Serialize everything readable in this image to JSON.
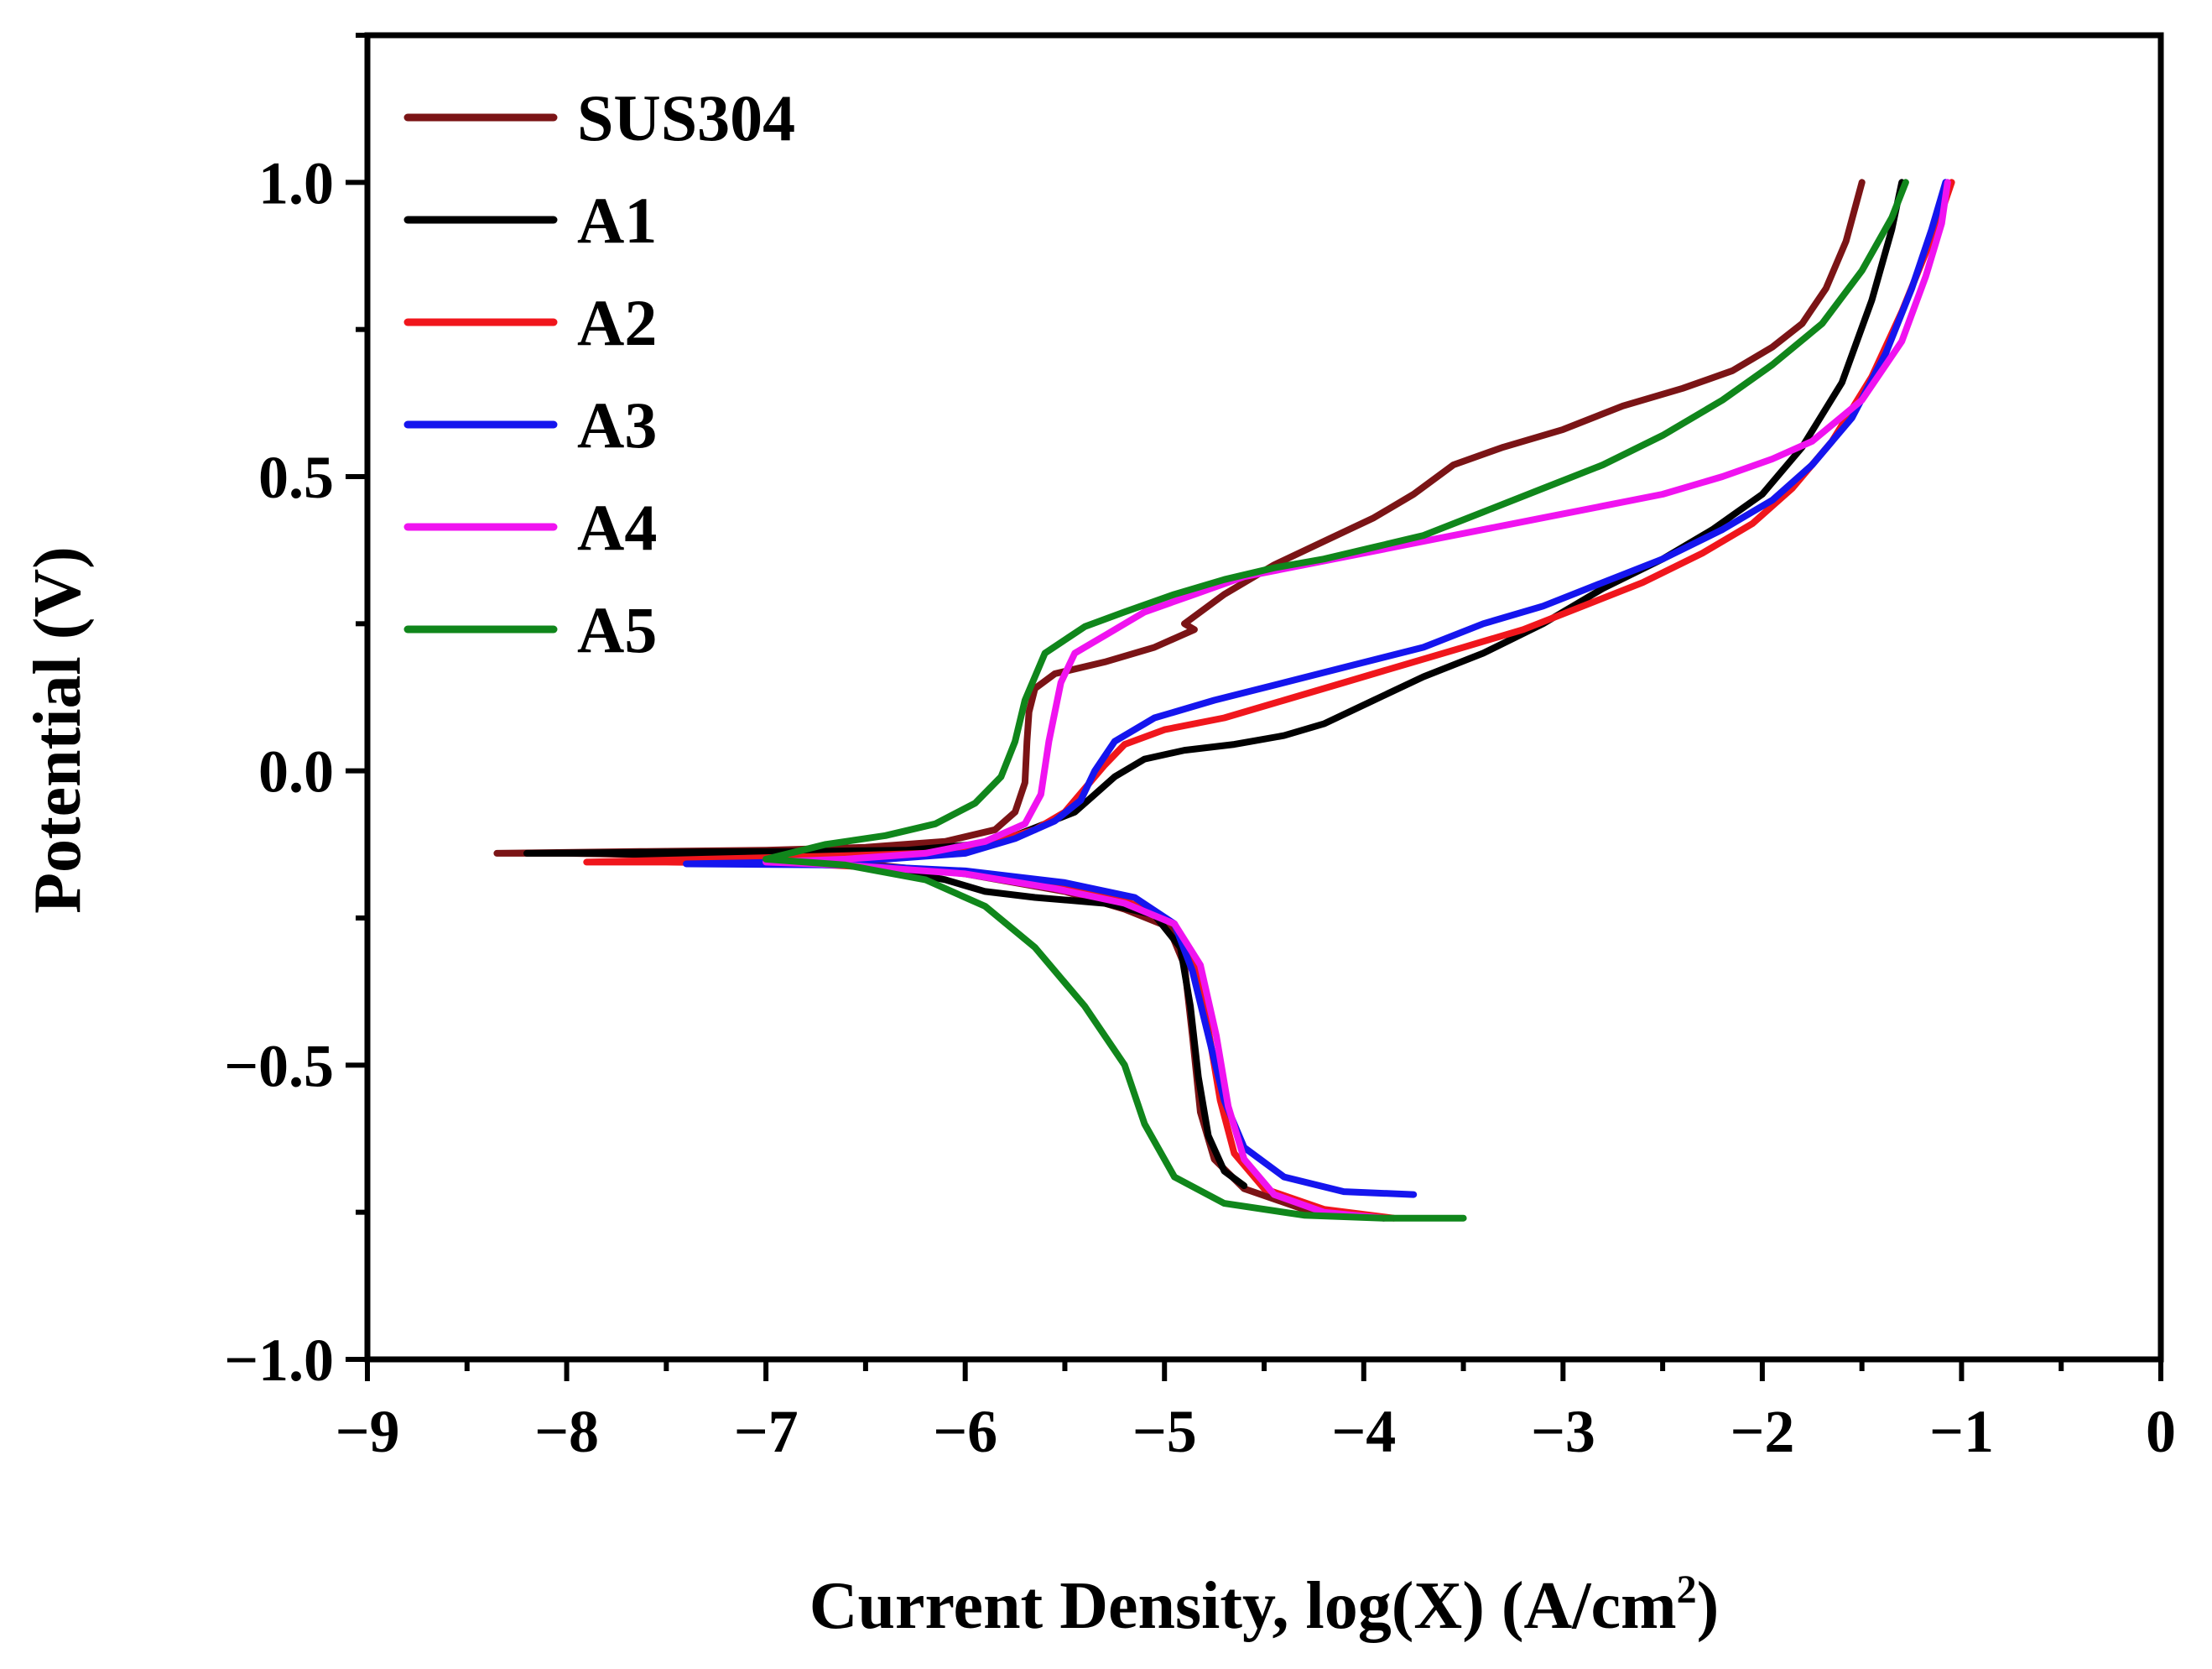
{
  "chart_data": {
    "type": "line",
    "title": "",
    "xlabel": "Current Density, log(X) (A/cm",
    "xlabel_sup": "2",
    "xlabel_close": ")",
    "ylabel": "Potential (V)",
    "xlim": [
      -9,
      0
    ],
    "ylim": [
      -1.0,
      1.25
    ],
    "x_ticks": [
      -9,
      -8,
      -7,
      -6,
      -5,
      -4,
      -3,
      -2,
      -1,
      0
    ],
    "x_tick_labels": [
      "−9",
      "−8",
      "−7",
      "−6",
      "−5",
      "−4",
      "−3",
      "−2",
      "−1",
      "0"
    ],
    "y_ticks": [
      -1.0,
      -0.5,
      0.0,
      0.5,
      1.0
    ],
    "y_tick_labels": [
      "−1.0",
      "−0.5",
      "0.0",
      "0.5",
      "1.0"
    ],
    "grid": false,
    "legend_position": "top-left",
    "series": [
      {
        "name": "SUS304",
        "color": "#7B1416",
        "points": [
          [
            -3.9,
            -0.76
          ],
          [
            -4.3,
            -0.745
          ],
          [
            -4.6,
            -0.71
          ],
          [
            -4.75,
            -0.66
          ],
          [
            -4.82,
            -0.58
          ],
          [
            -4.86,
            -0.45
          ],
          [
            -4.9,
            -0.33
          ],
          [
            -4.98,
            -0.265
          ],
          [
            -5.2,
            -0.235
          ],
          [
            -5.5,
            -0.205
          ],
          [
            -6.0,
            -0.175
          ],
          [
            -6.6,
            -0.155
          ],
          [
            -7.2,
            -0.145
          ],
          [
            -8.0,
            -0.14
          ],
          [
            -8.35,
            -0.14
          ],
          [
            -7.6,
            -0.137
          ],
          [
            -7.0,
            -0.135
          ],
          [
            -6.5,
            -0.13
          ],
          [
            -6.1,
            -0.12
          ],
          [
            -5.85,
            -0.1
          ],
          [
            -5.75,
            -0.07
          ],
          [
            -5.7,
            -0.02
          ],
          [
            -5.69,
            0.05
          ],
          [
            -5.68,
            0.1
          ],
          [
            -5.65,
            0.14
          ],
          [
            -5.55,
            0.165
          ],
          [
            -5.3,
            0.185
          ],
          [
            -5.05,
            0.21
          ],
          [
            -4.85,
            0.24
          ],
          [
            -4.9,
            0.25
          ],
          [
            -4.7,
            0.3
          ],
          [
            -4.45,
            0.35
          ],
          [
            -4.2,
            0.39
          ],
          [
            -3.95,
            0.43
          ],
          [
            -3.75,
            0.47
          ],
          [
            -3.55,
            0.52
          ],
          [
            -3.3,
            0.55
          ],
          [
            -3.0,
            0.58
          ],
          [
            -2.7,
            0.62
          ],
          [
            -2.4,
            0.65
          ],
          [
            -2.15,
            0.68
          ],
          [
            -1.95,
            0.72
          ],
          [
            -1.8,
            0.76
          ],
          [
            -1.68,
            0.82
          ],
          [
            -1.58,
            0.9
          ],
          [
            -1.5,
            1.0
          ]
        ]
      },
      {
        "name": "A1",
        "color": "#000000",
        "points": [
          [
            -4.6,
            -0.705
          ],
          [
            -4.7,
            -0.68
          ],
          [
            -4.78,
            -0.62
          ],
          [
            -4.83,
            -0.52
          ],
          [
            -4.87,
            -0.4
          ],
          [
            -4.92,
            -0.3
          ],
          [
            -5.05,
            -0.245
          ],
          [
            -5.3,
            -0.225
          ],
          [
            -5.65,
            -0.215
          ],
          [
            -5.9,
            -0.205
          ],
          [
            -6.1,
            -0.185
          ],
          [
            -6.4,
            -0.165
          ],
          [
            -7.0,
            -0.15
          ],
          [
            -7.8,
            -0.14
          ],
          [
            -8.2,
            -0.14
          ],
          [
            -7.5,
            -0.138
          ],
          [
            -6.8,
            -0.137
          ],
          [
            -6.3,
            -0.135
          ],
          [
            -5.95,
            -0.125
          ],
          [
            -5.75,
            -0.11
          ],
          [
            -5.6,
            -0.09
          ],
          [
            -5.45,
            -0.07
          ],
          [
            -5.35,
            -0.04
          ],
          [
            -5.25,
            -0.01
          ],
          [
            -5.1,
            0.02
          ],
          [
            -4.9,
            0.035
          ],
          [
            -4.65,
            0.045
          ],
          [
            -4.4,
            0.06
          ],
          [
            -4.2,
            0.08
          ],
          [
            -3.95,
            0.12
          ],
          [
            -3.7,
            0.16
          ],
          [
            -3.4,
            0.2
          ],
          [
            -3.1,
            0.25
          ],
          [
            -2.8,
            0.31
          ],
          [
            -2.5,
            0.36
          ],
          [
            -2.25,
            0.41
          ],
          [
            -2.0,
            0.47
          ],
          [
            -1.8,
            0.55
          ],
          [
            -1.6,
            0.66
          ],
          [
            -1.45,
            0.8
          ],
          [
            -1.35,
            0.92
          ],
          [
            -1.3,
            1.0
          ]
        ]
      },
      {
        "name": "A2",
        "color": "#F0161C",
        "points": [
          [
            -3.85,
            -0.76
          ],
          [
            -4.2,
            -0.745
          ],
          [
            -4.5,
            -0.71
          ],
          [
            -4.65,
            -0.65
          ],
          [
            -4.72,
            -0.56
          ],
          [
            -4.78,
            -0.44
          ],
          [
            -4.85,
            -0.33
          ],
          [
            -4.95,
            -0.26
          ],
          [
            -5.2,
            -0.22
          ],
          [
            -5.6,
            -0.19
          ],
          [
            -6.1,
            -0.17
          ],
          [
            -6.8,
            -0.158
          ],
          [
            -7.5,
            -0.155
          ],
          [
            -7.9,
            -0.155
          ],
          [
            -7.3,
            -0.15
          ],
          [
            -6.7,
            -0.145
          ],
          [
            -6.2,
            -0.14
          ],
          [
            -5.9,
            -0.125
          ],
          [
            -5.65,
            -0.1
          ],
          [
            -5.5,
            -0.07
          ],
          [
            -5.4,
            -0.03
          ],
          [
            -5.3,
            0.01
          ],
          [
            -5.2,
            0.045
          ],
          [
            -5.0,
            0.07
          ],
          [
            -4.7,
            0.09
          ],
          [
            -4.4,
            0.12
          ],
          [
            -4.1,
            0.15
          ],
          [
            -3.8,
            0.18
          ],
          [
            -3.5,
            0.21
          ],
          [
            -3.2,
            0.24
          ],
          [
            -2.9,
            0.28
          ],
          [
            -2.6,
            0.32
          ],
          [
            -2.3,
            0.37
          ],
          [
            -2.05,
            0.42
          ],
          [
            -1.85,
            0.48
          ],
          [
            -1.65,
            0.56
          ],
          [
            -1.45,
            0.67
          ],
          [
            -1.3,
            0.78
          ],
          [
            -1.18,
            0.88
          ],
          [
            -1.1,
            0.95
          ],
          [
            -1.05,
            1.0
          ]
        ]
      },
      {
        "name": "A3",
        "color": "#1515EE",
        "points": [
          [
            -3.75,
            -0.72
          ],
          [
            -4.1,
            -0.715
          ],
          [
            -4.4,
            -0.69
          ],
          [
            -4.6,
            -0.64
          ],
          [
            -4.7,
            -0.56
          ],
          [
            -4.78,
            -0.45
          ],
          [
            -4.86,
            -0.34
          ],
          [
            -4.95,
            -0.26
          ],
          [
            -5.15,
            -0.215
          ],
          [
            -5.5,
            -0.19
          ],
          [
            -6.0,
            -0.17
          ],
          [
            -6.6,
            -0.16
          ],
          [
            -7.4,
            -0.158
          ],
          [
            -6.9,
            -0.155
          ],
          [
            -6.4,
            -0.15
          ],
          [
            -6.0,
            -0.14
          ],
          [
            -5.75,
            -0.115
          ],
          [
            -5.55,
            -0.085
          ],
          [
            -5.42,
            -0.05
          ],
          [
            -5.35,
            0.0
          ],
          [
            -5.25,
            0.05
          ],
          [
            -5.05,
            0.09
          ],
          [
            -4.75,
            0.12
          ],
          [
            -4.4,
            0.15
          ],
          [
            -4.05,
            0.18
          ],
          [
            -3.7,
            0.21
          ],
          [
            -3.4,
            0.25
          ],
          [
            -3.1,
            0.28
          ],
          [
            -2.8,
            0.32
          ],
          [
            -2.5,
            0.36
          ],
          [
            -2.2,
            0.41
          ],
          [
            -1.95,
            0.46
          ],
          [
            -1.75,
            0.52
          ],
          [
            -1.55,
            0.6
          ],
          [
            -1.38,
            0.71
          ],
          [
            -1.25,
            0.82
          ],
          [
            -1.15,
            0.92
          ],
          [
            -1.08,
            1.0
          ]
        ]
      },
      {
        "name": "A4",
        "color": "#F013F0",
        "points": [
          [
            -3.9,
            -0.76
          ],
          [
            -4.2,
            -0.75
          ],
          [
            -4.45,
            -0.72
          ],
          [
            -4.6,
            -0.66
          ],
          [
            -4.68,
            -0.57
          ],
          [
            -4.74,
            -0.45
          ],
          [
            -4.82,
            -0.33
          ],
          [
            -4.95,
            -0.26
          ],
          [
            -5.2,
            -0.225
          ],
          [
            -5.55,
            -0.2
          ],
          [
            -6.0,
            -0.175
          ],
          [
            -6.6,
            -0.16
          ],
          [
            -7.0,
            -0.155
          ],
          [
            -6.6,
            -0.15
          ],
          [
            -6.2,
            -0.14
          ],
          [
            -5.9,
            -0.12
          ],
          [
            -5.7,
            -0.09
          ],
          [
            -5.62,
            -0.04
          ],
          [
            -5.58,
            0.05
          ],
          [
            -5.52,
            0.15
          ],
          [
            -5.45,
            0.2
          ],
          [
            -5.3,
            0.23
          ],
          [
            -5.1,
            0.27
          ],
          [
            -4.85,
            0.3
          ],
          [
            -4.6,
            0.33
          ],
          [
            -4.3,
            0.35
          ],
          [
            -4.0,
            0.37
          ],
          [
            -3.7,
            0.39
          ],
          [
            -3.4,
            0.41
          ],
          [
            -3.1,
            0.43
          ],
          [
            -2.8,
            0.45
          ],
          [
            -2.5,
            0.47
          ],
          [
            -2.2,
            0.5
          ],
          [
            -1.95,
            0.53
          ],
          [
            -1.75,
            0.56
          ],
          [
            -1.5,
            0.63
          ],
          [
            -1.3,
            0.73
          ],
          [
            -1.18,
            0.84
          ],
          [
            -1.1,
            0.93
          ],
          [
            -1.07,
            1.0
          ]
        ]
      },
      {
        "name": "A5",
        "color": "#10861B",
        "points": [
          [
            -3.5,
            -0.76
          ],
          [
            -3.9,
            -0.76
          ],
          [
            -4.3,
            -0.755
          ],
          [
            -4.7,
            -0.735
          ],
          [
            -4.95,
            -0.69
          ],
          [
            -5.1,
            -0.6
          ],
          [
            -5.2,
            -0.5
          ],
          [
            -5.4,
            -0.4
          ],
          [
            -5.65,
            -0.3
          ],
          [
            -5.9,
            -0.23
          ],
          [
            -6.2,
            -0.185
          ],
          [
            -6.6,
            -0.16
          ],
          [
            -7.0,
            -0.15
          ],
          [
            -6.7,
            -0.125
          ],
          [
            -6.4,
            -0.11
          ],
          [
            -6.15,
            -0.09
          ],
          [
            -5.95,
            -0.055
          ],
          [
            -5.82,
            -0.01
          ],
          [
            -5.75,
            0.05
          ],
          [
            -5.7,
            0.12
          ],
          [
            -5.6,
            0.2
          ],
          [
            -5.4,
            0.245
          ],
          [
            -5.2,
            0.27
          ],
          [
            -4.95,
            0.3
          ],
          [
            -4.7,
            0.325
          ],
          [
            -4.45,
            0.345
          ],
          [
            -4.2,
            0.36
          ],
          [
            -3.95,
            0.38
          ],
          [
            -3.7,
            0.4
          ],
          [
            -3.4,
            0.44
          ],
          [
            -3.1,
            0.48
          ],
          [
            -2.8,
            0.52
          ],
          [
            -2.5,
            0.57
          ],
          [
            -2.2,
            0.63
          ],
          [
            -1.95,
            0.69
          ],
          [
            -1.7,
            0.76
          ],
          [
            -1.5,
            0.85
          ],
          [
            -1.35,
            0.94
          ],
          [
            -1.28,
            1.0
          ]
        ]
      }
    ]
  }
}
